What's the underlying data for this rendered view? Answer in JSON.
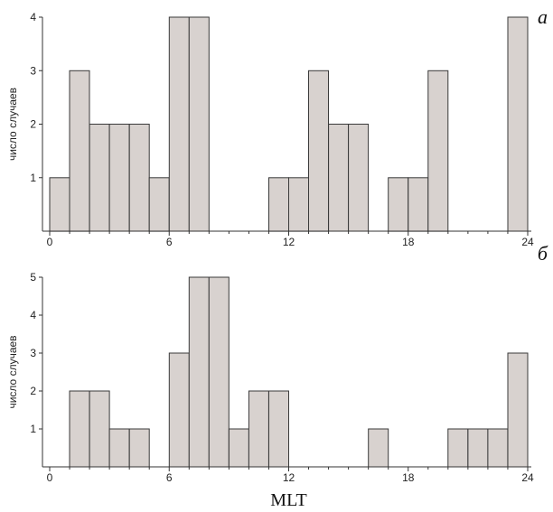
{
  "chart_data": [
    {
      "type": "bar",
      "panel_label": "а",
      "ylabel": "число случаев",
      "xlabel": "",
      "xlim": [
        0,
        24
      ],
      "ylim": [
        0,
        4
      ],
      "xticks": [
        0,
        6,
        12,
        18,
        24
      ],
      "yticks": [
        1,
        2,
        3,
        4
      ],
      "bin_width": 1,
      "bins": [
        {
          "x": 0,
          "value": 1
        },
        {
          "x": 1,
          "value": 3
        },
        {
          "x": 2,
          "value": 2
        },
        {
          "x": 3,
          "value": 2
        },
        {
          "x": 4,
          "value": 2
        },
        {
          "x": 5,
          "value": 1
        },
        {
          "x": 6,
          "value": 4
        },
        {
          "x": 7,
          "value": 4
        },
        {
          "x": 11,
          "value": 1
        },
        {
          "x": 12,
          "value": 1
        },
        {
          "x": 13,
          "value": 3
        },
        {
          "x": 14,
          "value": 2
        },
        {
          "x": 15,
          "value": 2
        },
        {
          "x": 17,
          "value": 1
        },
        {
          "x": 18,
          "value": 1
        },
        {
          "x": 19,
          "value": 3
        },
        {
          "x": 23,
          "value": 4
        }
      ]
    },
    {
      "type": "bar",
      "panel_label": "б",
      "ylabel": "число случаев",
      "xlabel": "MLT",
      "xlim": [
        0,
        24
      ],
      "ylim": [
        0,
        5
      ],
      "xticks": [
        0,
        6,
        12,
        18,
        24
      ],
      "yticks": [
        1,
        2,
        3,
        4,
        5
      ],
      "bin_width": 1,
      "bins": [
        {
          "x": 1,
          "value": 2
        },
        {
          "x": 2,
          "value": 2
        },
        {
          "x": 3,
          "value": 1
        },
        {
          "x": 4,
          "value": 1
        },
        {
          "x": 6,
          "value": 3
        },
        {
          "x": 7,
          "value": 5
        },
        {
          "x": 8,
          "value": 5
        },
        {
          "x": 9,
          "value": 1
        },
        {
          "x": 10,
          "value": 2
        },
        {
          "x": 11,
          "value": 2
        },
        {
          "x": 16,
          "value": 1
        },
        {
          "x": 20,
          "value": 1
        },
        {
          "x": 21,
          "value": 1
        },
        {
          "x": 22,
          "value": 1
        },
        {
          "x": 23,
          "value": 3
        }
      ]
    }
  ]
}
